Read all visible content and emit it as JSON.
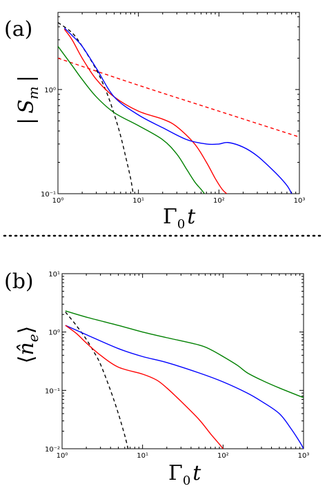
{
  "chart_data": [
    {
      "type": "line",
      "panel_label": "(a)",
      "xlabel": "Γ₀t",
      "xlabel_main": "Γ",
      "xlabel_sub": "0",
      "xlabel_var": "t",
      "ylabel": "|S_m|",
      "ylabel_left": "|",
      "ylabel_main": "S",
      "ylabel_sub": "m",
      "ylabel_right": "|",
      "xscale": "log",
      "yscale": "log",
      "xlim": [
        1,
        1000
      ],
      "ylim": [
        0.1,
        5.5
      ],
      "xticks": [
        "10⁰",
        "10¹",
        "10²",
        "10³"
      ],
      "xtick_values": [
        1,
        10,
        100,
        1000
      ],
      "yticks": [
        "10⁻¹",
        "10⁰"
      ],
      "ytick_values": [
        0.1,
        1
      ],
      "series": [
        {
          "color": "#000000",
          "style": "dashed",
          "x": [
            1.0,
            1.5,
            2.0,
            3.0,
            4.0,
            5.0,
            6.0,
            7.0,
            8.0,
            8.6
          ],
          "y": [
            4.4,
            3.5,
            2.6,
            1.55,
            0.95,
            0.58,
            0.36,
            0.22,
            0.14,
            0.1
          ]
        },
        {
          "color": "#ff0000",
          "style": "dashed",
          "x": [
            1.0,
            10,
            100,
            1000
          ],
          "y": [
            2.0,
            1.1,
            0.62,
            0.35
          ]
        },
        {
          "color": "#ff0000",
          "style": "solid",
          "x": [
            1.2,
            1.5,
            2.0,
            3.0,
            5.0,
            10,
            20,
            30,
            50,
            70,
            90,
            110,
            125
          ],
          "y": [
            3.8,
            3.0,
            2.0,
            1.25,
            0.85,
            0.62,
            0.52,
            0.44,
            0.3,
            0.2,
            0.14,
            0.11,
            0.1
          ]
        },
        {
          "color": "#0000ff",
          "style": "solid",
          "x": [
            1.2,
            1.5,
            2.0,
            3.0,
            5.0,
            10,
            20,
            40,
            70,
            100,
            130,
            200,
            300,
            500,
            700,
            800
          ],
          "y": [
            3.9,
            3.3,
            2.6,
            1.6,
            0.85,
            0.57,
            0.43,
            0.33,
            0.3,
            0.3,
            0.31,
            0.28,
            0.23,
            0.16,
            0.12,
            0.1
          ]
        },
        {
          "color": "#008000",
          "style": "solid",
          "x": [
            1.0,
            1.5,
            2.0,
            3.0,
            5.0,
            10,
            20,
            30,
            40,
            50,
            60,
            66
          ],
          "y": [
            2.6,
            1.7,
            1.25,
            0.85,
            0.6,
            0.45,
            0.33,
            0.24,
            0.17,
            0.13,
            0.11,
            0.1
          ]
        }
      ]
    },
    {
      "type": "line",
      "panel_label": "(b)",
      "xlabel": "Γ₀t",
      "xlabel_main": "Γ",
      "xlabel_sub": "0",
      "xlabel_var": "t",
      "ylabel": "⟨n̂_e⟩",
      "ylabel_open": "⟨",
      "ylabel_main": "n̂",
      "ylabel_sub": "e",
      "ylabel_close": "⟩",
      "xscale": "log",
      "yscale": "log",
      "xlim": [
        1,
        1000
      ],
      "ylim": [
        0.01,
        10
      ],
      "xticks": [
        "10⁰",
        "10¹",
        "10²",
        "10³"
      ],
      "xtick_values": [
        1,
        10,
        100,
        1000
      ],
      "yticks": [
        "10⁻²",
        "10⁻¹",
        "10⁰",
        "10¹"
      ],
      "ytick_values": [
        0.01,
        0.1,
        1,
        10
      ],
      "series": [
        {
          "color": "#000000",
          "style": "dashed",
          "x": [
            1.1,
            1.5,
            2.0,
            2.5,
            3.0,
            4.0,
            5.0,
            6.0,
            6.6
          ],
          "y": [
            2.2,
            1.3,
            0.75,
            0.45,
            0.28,
            0.1,
            0.04,
            0.017,
            0.01
          ]
        },
        {
          "color": "#008000",
          "style": "solid",
          "x": [
            1.1,
            2.0,
            5.0,
            10,
            20,
            50,
            70,
            100,
            150,
            200,
            300,
            500,
            1000
          ],
          "y": [
            2.3,
            1.8,
            1.3,
            1.0,
            0.8,
            0.6,
            0.5,
            0.38,
            0.27,
            0.2,
            0.15,
            0.11,
            0.075
          ]
        },
        {
          "color": "#0000ff",
          "style": "solid",
          "x": [
            1.1,
            2.0,
            5.0,
            10,
            20,
            50,
            100,
            200,
            300,
            500,
            700,
            900,
            1000
          ],
          "y": [
            1.3,
            0.9,
            0.52,
            0.38,
            0.3,
            0.2,
            0.14,
            0.09,
            0.065,
            0.04,
            0.022,
            0.013,
            0.01
          ]
        },
        {
          "color": "#ff0000",
          "style": "solid",
          "x": [
            1.1,
            1.5,
            2.0,
            3.0,
            5.0,
            10,
            15,
            20,
            30,
            50,
            70,
            90,
            100
          ],
          "y": [
            1.3,
            0.95,
            0.65,
            0.4,
            0.25,
            0.19,
            0.15,
            0.11,
            0.065,
            0.032,
            0.018,
            0.012,
            0.01
          ]
        }
      ]
    }
  ]
}
